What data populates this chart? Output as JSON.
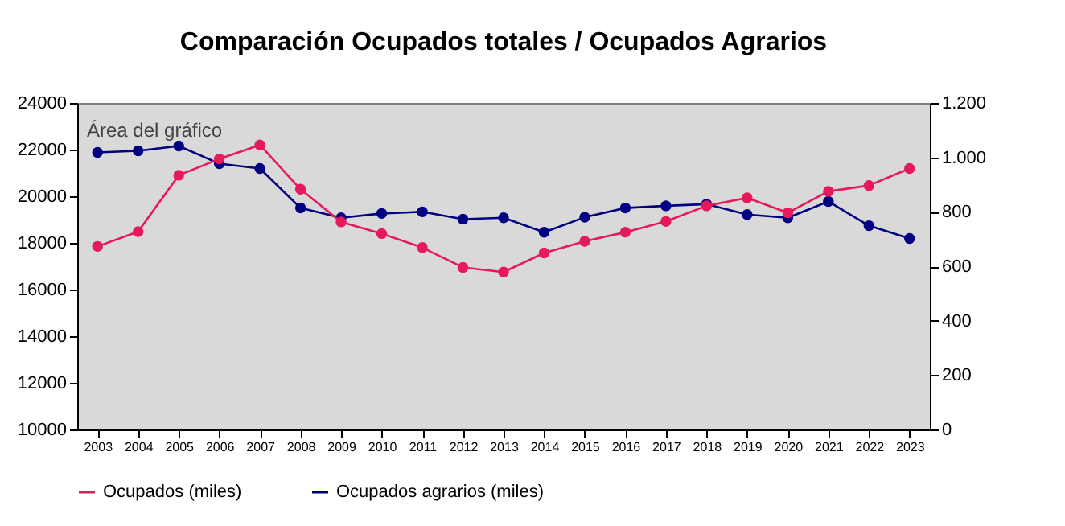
{
  "chart_data": {
    "type": "line",
    "title": "Comparación Ocupados totales / Ocupados Agrarios",
    "categories": [
      "2003",
      "2004",
      "2005",
      "2006",
      "2007",
      "2008",
      "2009",
      "2010",
      "2011",
      "2012",
      "2013",
      "2014",
      "2015",
      "2016",
      "2017",
      "2018",
      "2019",
      "2020",
      "2021",
      "2022",
      "2023"
    ],
    "series": [
      {
        "name": "Ocupados (miles)",
        "color": "#e6195a",
        "values": [
          17850,
          18480,
          20900,
          21600,
          22200,
          20300,
          18900,
          18400,
          17800,
          16950,
          16750,
          17570,
          18070,
          18460,
          18920,
          19590,
          19930,
          19290,
          20210,
          20460,
          21190
        ]
      },
      {
        "name": "Ocupados agrarios (miles)",
        "color": "#000080",
        "axis": "y2",
        "values": [
          1018,
          1024,
          1042,
          977,
          959,
          814,
          778,
          794,
          800,
          773,
          778,
          725,
          780,
          814,
          822,
          828,
          790,
          778,
          838,
          749,
          702
        ]
      }
    ],
    "ylim": [
      10000,
      24000
    ],
    "yticks": [
      10000,
      12000,
      14000,
      16000,
      18000,
      20000,
      22000,
      24000
    ],
    "y2lim": [
      0,
      1200
    ],
    "y2ticks": [
      0,
      200,
      400,
      600,
      800,
      {
        "value": 1000,
        "label": "1.000"
      },
      {
        "value": 1200,
        "label": "1.200"
      }
    ],
    "marker": "circle",
    "line_style": "solid",
    "grid": false,
    "legend": "bottom",
    "annotations": [
      "Área del gráfico"
    ]
  }
}
